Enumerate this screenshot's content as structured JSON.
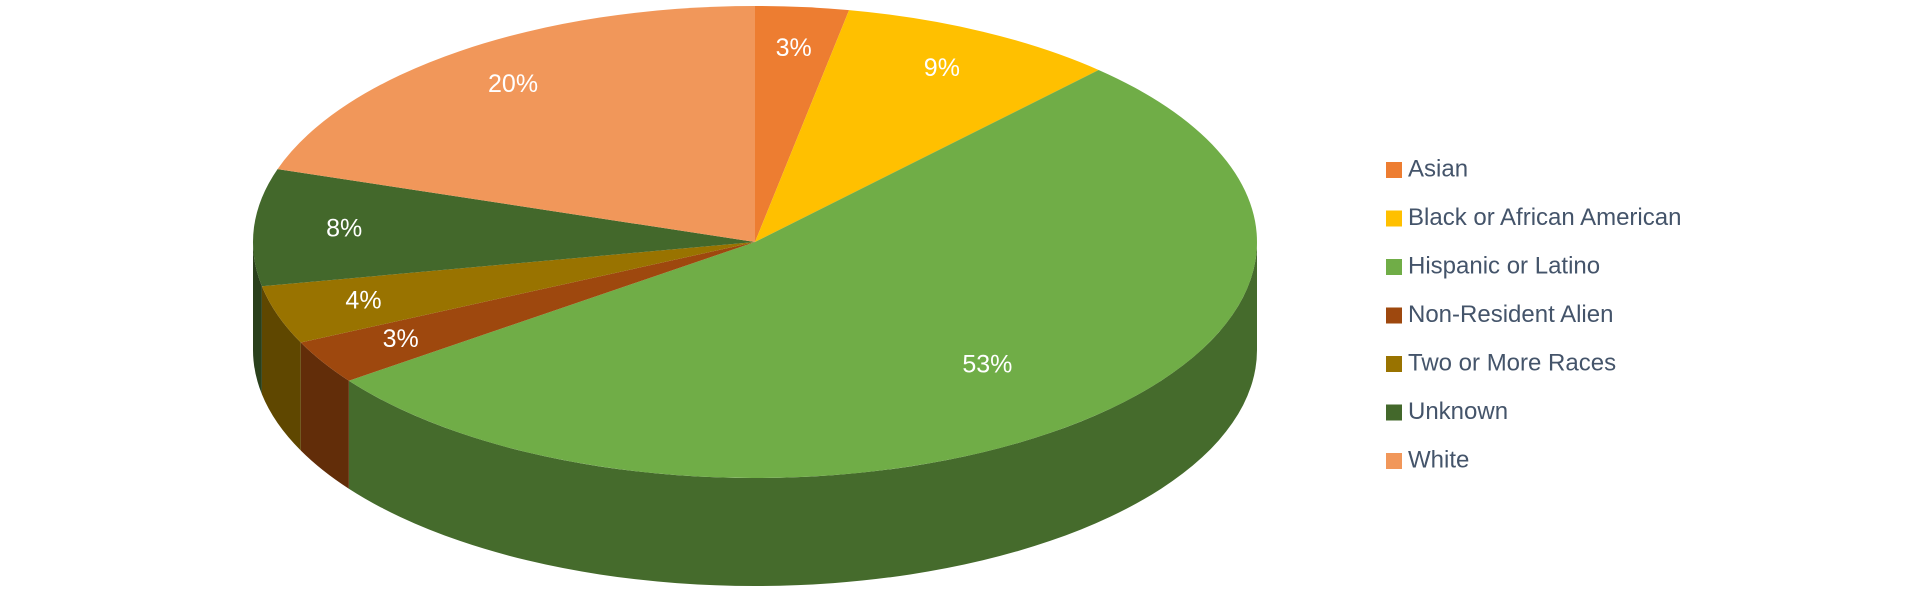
{
  "chart_data": {
    "type": "pie3d",
    "categories": [
      "Asian",
      "Black or African American",
      "Hispanic or Latino",
      "Non-Resident Alien",
      "Two or More Races",
      "Unknown",
      "White"
    ],
    "values": [
      3,
      9,
      53,
      3,
      4,
      8,
      20
    ],
    "value_labels": [
      "3%",
      "9%",
      "53%",
      "3%",
      "4%",
      "8%",
      "20%"
    ],
    "colors": [
      "#ed7d31",
      "#ffc000",
      "#70ad47",
      "#9e480e",
      "#997300",
      "#43682b",
      "#f1975a"
    ],
    "legend": "right"
  }
}
